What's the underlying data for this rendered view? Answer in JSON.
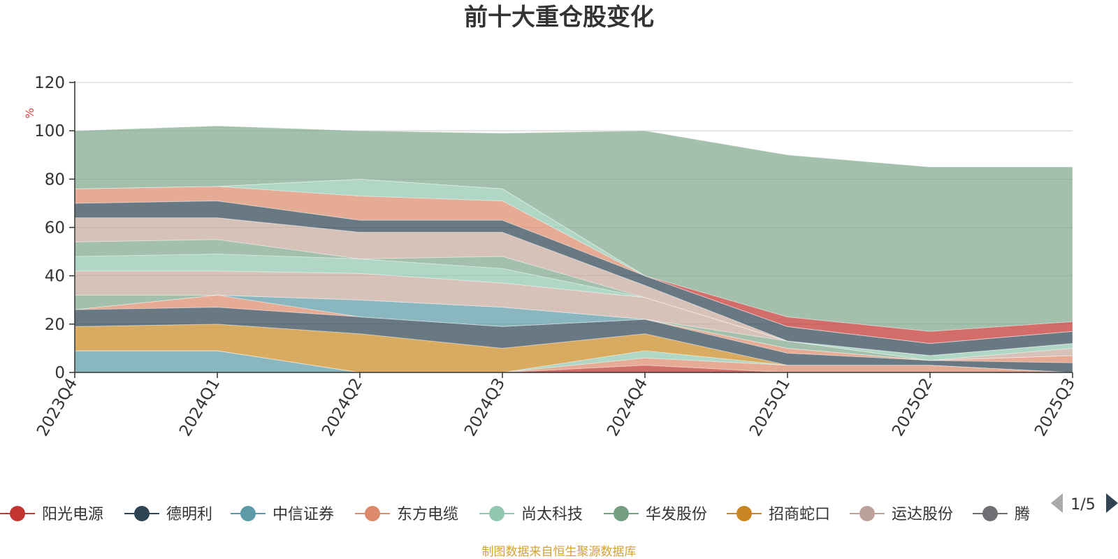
{
  "chart_data": {
    "type": "area",
    "title": "前十大重仓股变化",
    "ylabel": "%",
    "ylim": [
      0,
      120
    ],
    "yticks": [
      0,
      20,
      40,
      60,
      80,
      100,
      120
    ],
    "categories": [
      "2023Q4",
      "2024Q1",
      "2024Q2",
      "2024Q3",
      "2024Q4",
      "2025Q1",
      "2025Q2",
      "2025Q3"
    ],
    "stacked": true,
    "series": [
      {
        "name": "中信证券",
        "color": "#5b9aa6",
        "values": [
          9,
          9,
          0,
          0,
          0,
          0,
          0,
          0
        ]
      },
      {
        "name": "阳光电源",
        "color": "#c23531",
        "values": [
          0,
          0,
          0,
          0,
          3,
          0,
          0,
          0
        ]
      },
      {
        "name": "东方电缆",
        "color": "#dd8a6b",
        "values": [
          0,
          0,
          0,
          0,
          3,
          3,
          3,
          0
        ]
      },
      {
        "name": "尚太科技",
        "color": "#91c7ae",
        "values": [
          0,
          0,
          0,
          0,
          3,
          0,
          0,
          0
        ]
      },
      {
        "name": "招商蛇口",
        "color": "#cb8a24",
        "values": [
          10,
          11,
          16,
          10,
          7,
          0,
          0,
          0
        ]
      },
      {
        "name": "德明利",
        "color": "#2f4554",
        "values": [
          7,
          7,
          7,
          9,
          6,
          5,
          2,
          4
        ]
      },
      {
        "name": "东方电缆",
        "color": "#dd8a6b",
        "values": [
          0,
          5,
          0,
          0,
          0,
          2,
          0,
          3
        ]
      },
      {
        "name": "中信证券",
        "color": "#5b9aa6",
        "values": [
          0,
          0,
          7,
          8,
          0,
          0,
          0,
          0
        ]
      },
      {
        "name": "华发股份",
        "color": "#7ea88c",
        "values": [
          6,
          0,
          0,
          0,
          0,
          3,
          0,
          0
        ]
      },
      {
        "name": "运达股份",
        "color": "#c8aaa0",
        "values": [
          10,
          10,
          11,
          10,
          9,
          0,
          0,
          3
        ]
      },
      {
        "name": "尚太科技",
        "color": "#91c7ae",
        "values": [
          6,
          7,
          6,
          6,
          0,
          0,
          2,
          2
        ]
      },
      {
        "name": "华发股份",
        "color": "#7ea88c",
        "values": [
          6,
          6,
          0,
          5,
          0,
          0,
          0,
          0
        ]
      },
      {
        "name": "运达股份",
        "color": "#c8aaa0",
        "values": [
          10,
          9,
          11,
          10,
          5,
          0,
          0,
          0
        ]
      },
      {
        "name": "德明利",
        "color": "#2f4554",
        "values": [
          6,
          7,
          5,
          5,
          4,
          6,
          5,
          5
        ]
      },
      {
        "name": "东方电缆",
        "color": "#dd8a6b",
        "values": [
          6,
          6,
          10,
          8,
          0,
          0,
          0,
          0
        ]
      },
      {
        "name": "尚太科技",
        "color": "#91c7ae",
        "values": [
          0,
          0,
          7,
          5,
          0,
          0,
          0,
          0
        ]
      },
      {
        "name": "阳光电源",
        "color": "#c23531",
        "values": [
          0,
          0,
          0,
          0,
          0,
          4,
          5,
          4
        ]
      },
      {
        "name": "华发股份",
        "color": "#7ea88c",
        "values": [
          24,
          25,
          20,
          23,
          60,
          67,
          68,
          64
        ]
      }
    ],
    "legend": {
      "position": "bottom",
      "items": [
        {
          "name": "阳光电源",
          "color": "#c23531"
        },
        {
          "name": "德明利",
          "color": "#2f4554"
        },
        {
          "name": "中信证券",
          "color": "#5b9aa6"
        },
        {
          "name": "东方电缆",
          "color": "#dd8a6b"
        },
        {
          "name": "尚太科技",
          "color": "#91c7ae"
        },
        {
          "name": "华发股份",
          "color": "#749f83"
        },
        {
          "name": "招商蛇口",
          "color": "#ca8622"
        },
        {
          "name": "运达股份",
          "color": "#bda29a"
        },
        {
          "name": "腾",
          "color": "#6e7074"
        }
      ],
      "page": "1/5"
    },
    "source": "制图数据来自恒生聚源数据库"
  },
  "colors": {
    "grid": "#cccccc",
    "axis": "#333333",
    "unit": "#e03c3c",
    "source": "#d4a133"
  }
}
